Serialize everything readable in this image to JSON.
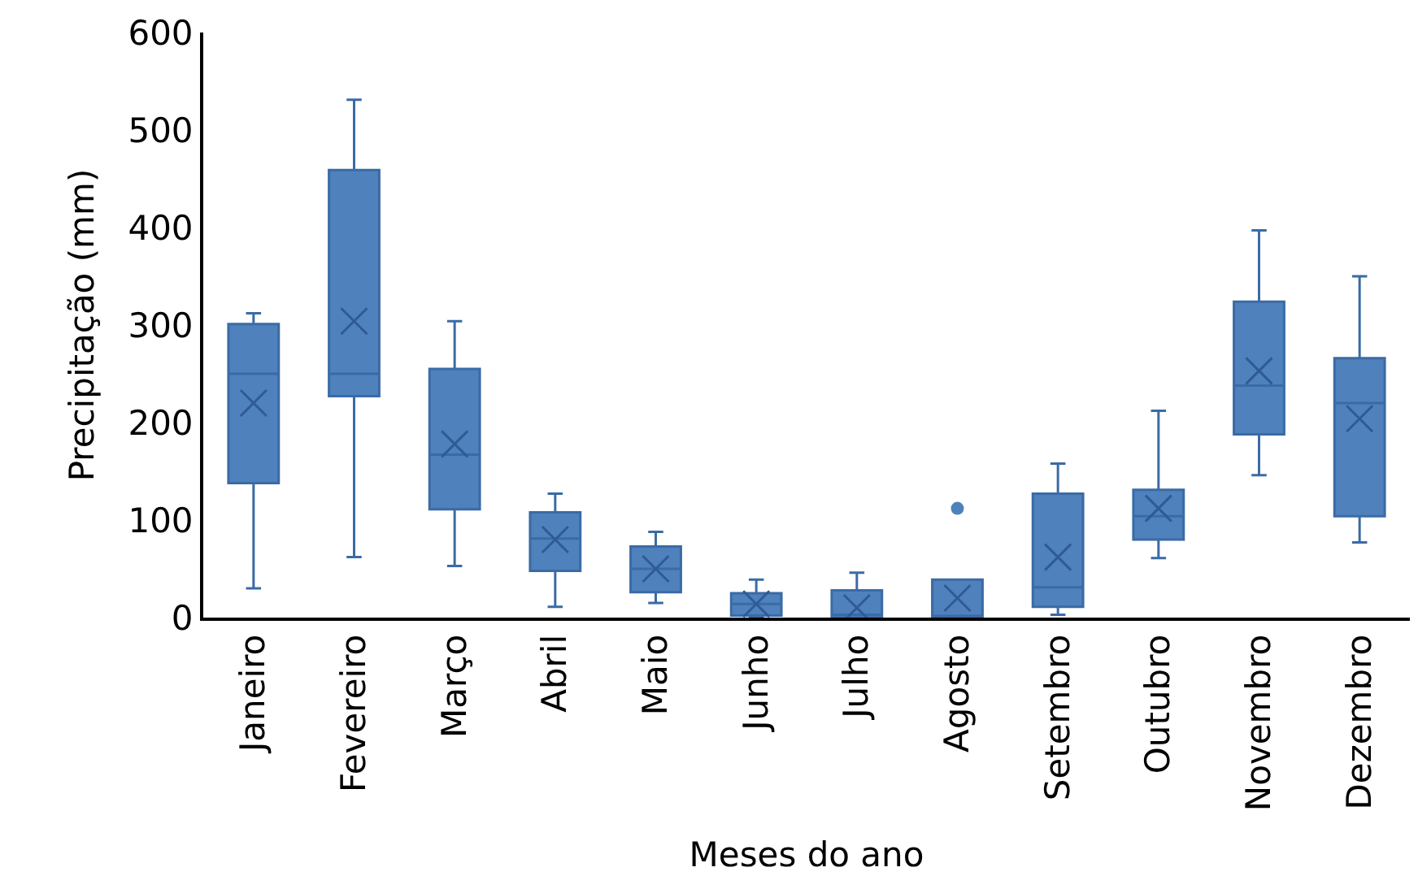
{
  "chart_data": {
    "type": "box",
    "xlabel": "Meses do ano",
    "ylabel": "Precipitação (mm)",
    "categories": [
      "Janeiro",
      "Fevereiro",
      "Março",
      "Abril",
      "Maio",
      "Junho",
      "Julho",
      "Agosto",
      "Setembro",
      "Outubro",
      "Novembro",
      "Dezembro"
    ],
    "color": "#4f81bd",
    "boxes": [
      {
        "low": 30,
        "q1": 138,
        "median": 250,
        "q3": 301,
        "high": 312,
        "mean": 220
      },
      {
        "low": 62,
        "q1": 227,
        "median": 250,
        "q3": 459,
        "high": 531,
        "mean": 304
      },
      {
        "low": 53,
        "q1": 111,
        "median": 167,
        "q3": 255,
        "high": 304,
        "mean": 178
      },
      {
        "low": 11,
        "q1": 48,
        "median": 81,
        "q3": 108,
        "high": 127,
        "mean": 80
      },
      {
        "low": 15,
        "q1": 26,
        "median": 50,
        "q3": 73,
        "high": 88,
        "mean": 50
      },
      {
        "low": 0,
        "q1": 2,
        "median": 14,
        "q3": 25,
        "high": 39,
        "mean": 14
      },
      {
        "low": 0,
        "q1": 0,
        "median": 3,
        "q3": 28,
        "high": 46,
        "mean": 10
      },
      {
        "low": 0,
        "q1": 0,
        "median": 0,
        "q3": 39,
        "high": 39,
        "mean": 20,
        "outliers": [
          112
        ]
      },
      {
        "low": 3,
        "q1": 11,
        "median": 31,
        "q3": 127,
        "high": 158,
        "mean": 62
      },
      {
        "low": 61,
        "q1": 80,
        "median": 104,
        "q3": 131,
        "high": 212,
        "mean": 112
      },
      {
        "low": 146,
        "q1": 188,
        "median": 238,
        "q3": 324,
        "high": 397,
        "mean": 253
      },
      {
        "low": 77,
        "q1": 104,
        "median": 220,
        "q3": 266,
        "high": 350,
        "mean": 204
      }
    ],
    "ylim": [
      0,
      600
    ],
    "yticks": [
      0,
      100,
      200,
      300,
      400,
      500,
      600
    ]
  }
}
